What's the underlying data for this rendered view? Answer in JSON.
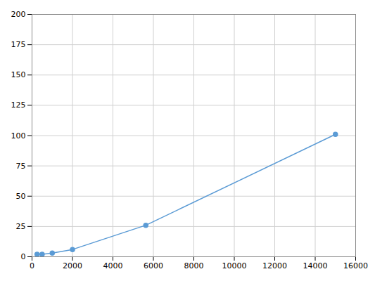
{
  "chart_data": {
    "type": "line",
    "x": [
      250,
      500,
      1000,
      2000,
      5625,
      15000
    ],
    "values": [
      2,
      2,
      3,
      6,
      26,
      101
    ],
    "color": "#5b9bd5",
    "marker": "o",
    "xlim": [
      0,
      16000
    ],
    "ylim": [
      0,
      200
    ],
    "xticks": [
      0,
      2000,
      4000,
      6000,
      8000,
      10000,
      12000,
      14000,
      16000
    ],
    "yticks": [
      0,
      25,
      50,
      75,
      100,
      125,
      150,
      175,
      200
    ],
    "grid": true
  }
}
